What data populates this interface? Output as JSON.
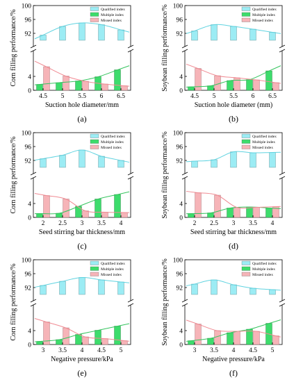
{
  "legend": [
    "Qualified index",
    "Multiple index",
    "Missed index"
  ],
  "colors": {
    "qualified": "#9cecf4",
    "multiple": "#3ddc6c",
    "missed": "#f6b4b8",
    "qualified_curve": "#5fd3e0",
    "multiple_curve": "#35c45e",
    "missed_curve": "#f08a92",
    "frame": "#000000"
  },
  "chart_data": [
    {
      "type": "bar",
      "caption": "(a)",
      "xlabel": "Suction hole diameter/mm",
      "ylabel": "Corn filling performance/%",
      "categories": [
        "4.5",
        "5",
        "5.5",
        "6",
        "6.5"
      ],
      "series": [
        {
          "name": "Qualified index",
          "values": [
            91.5,
            94.0,
            95.0,
            94.5,
            93.0
          ]
        },
        {
          "name": "Multiple index",
          "values": [
            1.7,
            2.2,
            2.7,
            3.9,
            5.9
          ]
        },
        {
          "name": "Missed index",
          "values": [
            6.8,
            4.1,
            2.6,
            1.8,
            1.3
          ]
        }
      ],
      "y_upper_range": [
        90,
        100
      ],
      "y_upper_ticks": [
        92,
        96,
        100
      ],
      "y_lower_range": [
        0,
        8
      ],
      "y_lower_ticks": [
        0,
        4
      ],
      "legend_position": "top-right",
      "grid": false
    },
    {
      "type": "bar",
      "caption": "(b)",
      "xlabel": "Suction hole diameter (mm)",
      "ylabel": "Soybean filling performance/%",
      "categories": [
        "4.5",
        "5",
        "5.5",
        "6",
        "6.5"
      ],
      "series": [
        {
          "name": "Qualified index",
          "values": [
            92.7,
            94.5,
            94.0,
            93.2,
            92.3
          ]
        },
        {
          "name": "Multiple index",
          "values": [
            1.0,
            1.3,
            2.8,
            3.1,
            5.6
          ]
        },
        {
          "name": "Missed index",
          "values": [
            6.3,
            4.2,
            3.6,
            3.0,
            2.2
          ]
        }
      ],
      "y_upper_range": [
        90,
        100
      ],
      "y_upper_ticks": [
        92,
        96,
        100
      ],
      "y_lower_range": [
        0,
        8
      ],
      "y_lower_ticks": [
        0,
        4
      ],
      "legend_position": "top-right",
      "grid": false
    },
    {
      "type": "bar",
      "caption": "(c)",
      "xlabel": "Seed stirring bar thickness/mm",
      "ylabel": "Corn filling performance/%",
      "categories": [
        "2",
        "2.5",
        "3",
        "3.5",
        "4"
      ],
      "series": [
        {
          "name": "Qualified index",
          "values": [
            92.5,
            93.5,
            95.0,
            93.2,
            92.0
          ]
        },
        {
          "name": "Multiple index",
          "values": [
            1.1,
            1.2,
            3.2,
            5.3,
            6.6
          ]
        },
        {
          "name": "Missed index",
          "values": [
            6.3,
            5.3,
            1.9,
            1.5,
            1.4
          ]
        }
      ],
      "y_upper_range": [
        90,
        100
      ],
      "y_upper_ticks": [
        92,
        96,
        100
      ],
      "y_lower_range": [
        0,
        8
      ],
      "y_lower_ticks": [
        0,
        4
      ],
      "legend_position": "top-right",
      "grid": false
    },
    {
      "type": "bar",
      "caption": "(d)",
      "xlabel": "Seed stirring bar thickness/mm",
      "ylabel": "Soybean filling performance/%",
      "categories": [
        "2",
        "2.5",
        "3",
        "3.5",
        "4"
      ],
      "series": [
        {
          "name": "Qualified index",
          "values": [
            91.8,
            92.2,
            94.5,
            94.2,
            94.3
          ]
        },
        {
          "name": "Multiple index",
          "values": [
            1.1,
            1.3,
            2.7,
            3.0,
            2.7
          ]
        },
        {
          "name": "Missed index",
          "values": [
            7.1,
            6.4,
            2.9,
            2.9,
            3.1
          ]
        }
      ],
      "y_upper_range": [
        90,
        100
      ],
      "y_upper_ticks": [
        92,
        96,
        100
      ],
      "y_lower_range": [
        0,
        8
      ],
      "y_lower_ticks": [
        0,
        4
      ],
      "legend_position": "top-right",
      "grid": false
    },
    {
      "type": "bar",
      "caption": "(e)",
      "xlabel": "Negative pressure/kPa",
      "ylabel": "Corn filling performance/%",
      "categories": [
        "3",
        "3.5",
        "4",
        "4.5",
        "5"
      ],
      "series": [
        {
          "name": "Qualified index",
          "values": [
            92.6,
            93.8,
            94.9,
            94.2,
            93.6
          ]
        },
        {
          "name": "Multiple index",
          "values": [
            0.9,
            1.4,
            2.9,
            4.1,
            5.3
          ]
        },
        {
          "name": "Missed index",
          "values": [
            6.5,
            4.8,
            2.2,
            1.7,
            1.1
          ]
        }
      ],
      "y_upper_range": [
        90,
        100
      ],
      "y_upper_ticks": [
        92,
        96,
        100
      ],
      "y_lower_range": [
        0,
        8
      ],
      "y_lower_ticks": [
        0,
        4
      ],
      "legend_position": "top-right",
      "grid": false
    },
    {
      "type": "bar",
      "caption": "(f)",
      "xlabel": "Negative pressure/kPa",
      "ylabel": "Soybean filling performance/%",
      "categories": [
        "3",
        "3.5",
        "4",
        "4.5",
        "5"
      ],
      "series": [
        {
          "name": "Qualified index",
          "values": [
            93.0,
            94.2,
            92.8,
            91.8,
            91.4
          ]
        },
        {
          "name": "Multiple index",
          "values": [
            1.1,
            1.8,
            3.4,
            4.4,
            6.1
          ]
        },
        {
          "name": "Missed index",
          "values": [
            5.9,
            4.0,
            3.8,
            3.8,
            2.5
          ]
        }
      ],
      "y_upper_range": [
        90,
        100
      ],
      "y_upper_ticks": [
        92,
        96,
        100
      ],
      "y_lower_range": [
        0,
        8
      ],
      "y_lower_ticks": [
        0,
        4
      ],
      "legend_position": "top-right",
      "grid": false
    }
  ]
}
